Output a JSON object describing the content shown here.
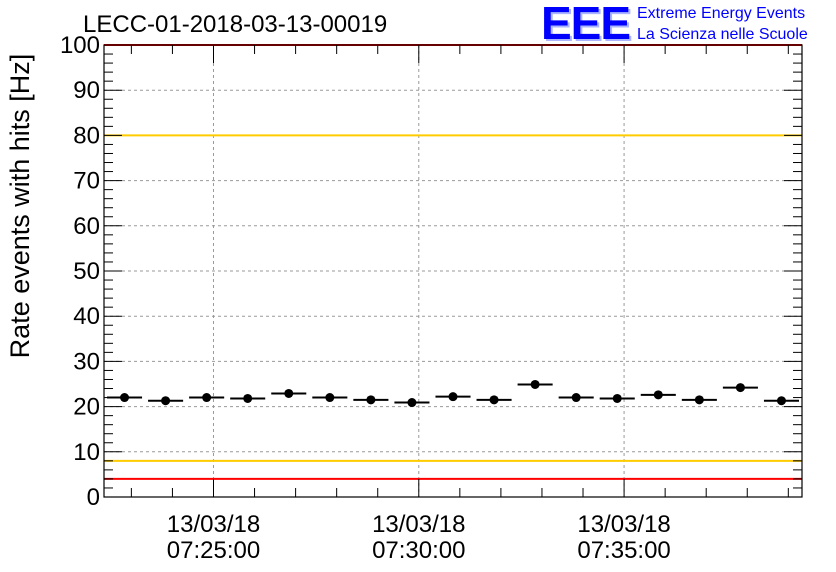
{
  "chart_data": {
    "type": "scatter",
    "title": "LECC-01-2018-03-13-00019",
    "ylabel": "Rate events with hits [Hz]",
    "xlabel": "",
    "ylim": [
      0,
      100
    ],
    "yticks": [
      0,
      10,
      20,
      30,
      40,
      50,
      60,
      70,
      80,
      90,
      100
    ],
    "x_axis": {
      "type": "time",
      "start": "07:22:20",
      "end": "07:39:20",
      "ticks": [
        {
          "time": "07:25:00",
          "date_label": "13/03/18",
          "time_label": "07:25:00"
        },
        {
          "time": "07:30:00",
          "date_label": "13/03/18",
          "time_label": "07:30:00"
        },
        {
          "time": "07:35:00",
          "date_label": "13/03/18",
          "time_label": "07:35:00"
        }
      ]
    },
    "grid": true,
    "bin_width_seconds": 60,
    "series": [
      {
        "marker": "circle",
        "color": "#000000",
        "points": [
          {
            "x": "07:22:50",
            "y": 22.0
          },
          {
            "x": "07:23:50",
            "y": 21.3
          },
          {
            "x": "07:24:50",
            "y": 22.0
          },
          {
            "x": "07:25:50",
            "y": 21.8
          },
          {
            "x": "07:26:50",
            "y": 22.9
          },
          {
            "x": "07:27:50",
            "y": 22.0
          },
          {
            "x": "07:28:50",
            "y": 21.5
          },
          {
            "x": "07:29:50",
            "y": 20.9
          },
          {
            "x": "07:30:50",
            "y": 22.2
          },
          {
            "x": "07:31:50",
            "y": 21.5
          },
          {
            "x": "07:32:50",
            "y": 24.9
          },
          {
            "x": "07:33:50",
            "y": 22.0
          },
          {
            "x": "07:34:50",
            "y": 21.8
          },
          {
            "x": "07:35:50",
            "y": 22.6
          },
          {
            "x": "07:36:50",
            "y": 21.5
          },
          {
            "x": "07:37:50",
            "y": 24.2
          },
          {
            "x": "07:38:50",
            "y": 21.3
          }
        ]
      }
    ],
    "reference_lines": [
      {
        "y": 100,
        "color": "#ff0000"
      },
      {
        "y": 80,
        "color": "#ffcc00"
      },
      {
        "y": 8,
        "color": "#ffcc00"
      },
      {
        "y": 4,
        "color": "#ff0000"
      }
    ]
  },
  "logo": {
    "mark": "EEE",
    "line1": "Extreme Energy Events",
    "line2": "La Scienza nelle Scuole",
    "color": "#0000ff"
  }
}
